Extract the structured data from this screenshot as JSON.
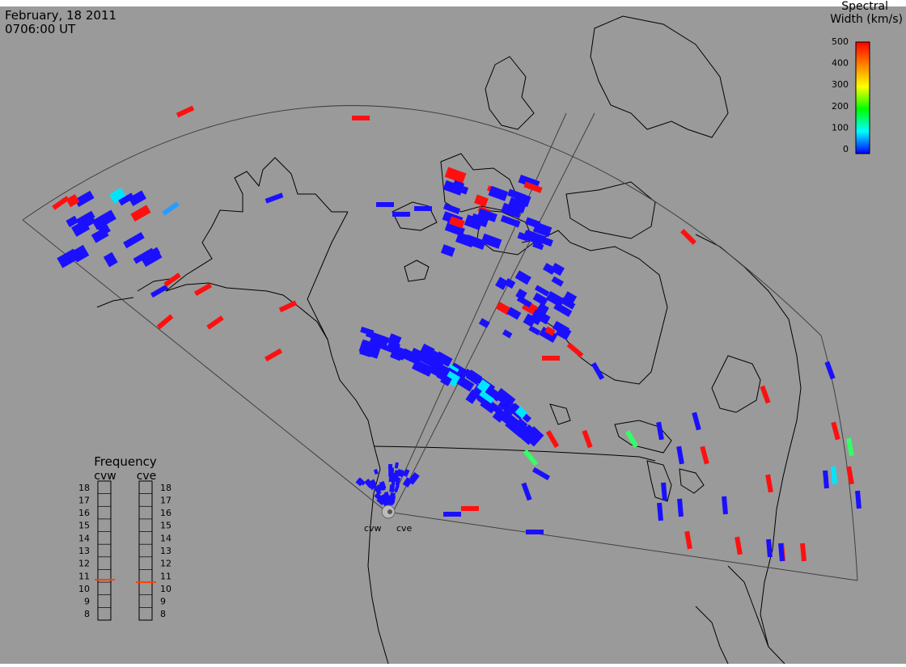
{
  "header": {
    "date": "February, 18 2011",
    "time": "0706:00 UT"
  },
  "colorbar": {
    "title_line1": "Spectral",
    "title_line2": "Width (km/s)",
    "ticks": [
      "500",
      "400",
      "300",
      "200",
      "100",
      "0"
    ],
    "colors": [
      "#0000ff",
      "#00ffff",
      "#00ff00",
      "#ffff00",
      "#ff8000",
      "#ff0000"
    ]
  },
  "frequency_panel": {
    "title": "Frequency",
    "radars": [
      "cvw",
      "cve"
    ],
    "ticks": [
      "18",
      "17",
      "16",
      "15",
      "14",
      "13",
      "12",
      "11",
      "10",
      "9",
      "8"
    ],
    "cvw_freq_mhz": 10.7,
    "cve_freq_mhz": 10.5,
    "marker_color": "#ff4000"
  },
  "radar_sites": {
    "cvw": "cvw",
    "cve": "cve"
  },
  "colors": {
    "background": "#9a9a9a",
    "coast": "#000000",
    "fov": "#404040"
  }
}
